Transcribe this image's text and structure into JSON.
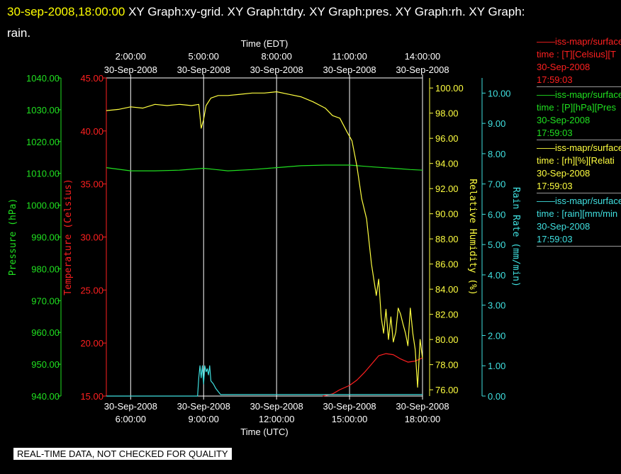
{
  "header": {
    "timestamp": "30-sep-2008,18:00:00",
    "graphs": "XY Graph:xy-grid.  XY Graph:tdry.  XY Graph:pres.  XY Graph:rh.  XY Graph:",
    "last_line": "rain."
  },
  "legend": [
    {
      "color": "#ff2020",
      "line1": "——iss-mapr/surface",
      "line2": "time : [T][Celsius][T",
      "line3": "30-Sep-2008",
      "line4": "17:59:03"
    },
    {
      "color": "#20e020",
      "line1": "——iss-mapr/surface",
      "line2": "time : [P][hPa][Pres",
      "line3": "30-Sep-2008",
      "line4": "17:59:03"
    },
    {
      "color": "#ffff40",
      "line1": "——iss-mapr/surface",
      "line2": "time : [rh][%][Relati",
      "line3": "30-Sep-2008",
      "line4": "17:59:03"
    },
    {
      "color": "#40e0e0",
      "line1": "——iss-mapr/surface",
      "line2": "time : [rain][mm/min",
      "line3": "30-Sep-2008",
      "line4": "17:59:03"
    }
  ],
  "footer": "REAL-TIME DATA, NOT CHECKED FOR QUALITY",
  "chart_data": {
    "type": "line",
    "x_range_utc_hours": [
      5,
      18
    ],
    "grid": true,
    "top_axis": {
      "title": "Time (EDT)",
      "ticks": [
        {
          "hour_utc": 6,
          "time": "2:00:00",
          "date": "30-Sep-2008"
        },
        {
          "hour_utc": 9,
          "time": "5:00:00",
          "date": "30-Sep-2008"
        },
        {
          "hour_utc": 12,
          "time": "8:00:00",
          "date": "30-Sep-2008"
        },
        {
          "hour_utc": 15,
          "time": "11:00:00",
          "date": "30-Sep-2008"
        },
        {
          "hour_utc": 18,
          "time": "14:00:00",
          "date": "30-Sep-2008"
        }
      ]
    },
    "bottom_axis": {
      "title": "Time (UTC)",
      "ticks": [
        {
          "hour_utc": 6,
          "date": "30-Sep-2008",
          "time": "6:00:00"
        },
        {
          "hour_utc": 9,
          "date": "30-Sep-2008",
          "time": "9:00:00"
        },
        {
          "hour_utc": 12,
          "date": "30-Sep-2008",
          "time": "12:00:00"
        },
        {
          "hour_utc": 15,
          "date": "30-Sep-2008",
          "time": "15:00:00"
        },
        {
          "hour_utc": 18,
          "date": "30-Sep-2008",
          "time": "18:00:00"
        }
      ]
    },
    "axes": {
      "pressure": {
        "label": "Pressure (hPa)",
        "color": "#20e020",
        "range": [
          940,
          1040
        ],
        "ticks": [
          "1040.00",
          "1030.00",
          "1020.00",
          "1010.00",
          "1000.00",
          "990.00",
          "980.00",
          "970.00",
          "960.00",
          "950.00",
          "940.00"
        ]
      },
      "temperature": {
        "label": "Temperature (Celsius)",
        "color": "#ff2020",
        "range": [
          15,
          45
        ],
        "ticks": [
          "45.00",
          "40.00",
          "35.00",
          "30.00",
          "25.00",
          "20.00",
          "15.00"
        ]
      },
      "rh": {
        "label": "Relative Humidity (%)",
        "color": "#ffff40",
        "range": [
          75.5,
          100.8
        ],
        "ticks": [
          "100.00",
          "98.00",
          "96.00",
          "94.00",
          "92.00",
          "90.00",
          "88.00",
          "86.00",
          "84.00",
          "82.00",
          "80.00",
          "78.00",
          "76.00"
        ]
      },
      "rain": {
        "label": "Rain Rate (mm/min)",
        "color": "#40e0e0",
        "range": [
          0,
          10.5
        ],
        "ticks": [
          "10.00",
          "9.00",
          "8.00",
          "7.00",
          "6.00",
          "5.00",
          "4.00",
          "3.00",
          "2.00",
          "1.00",
          "0.00"
        ]
      }
    },
    "series": [
      {
        "name": "iss-mapr/surface T",
        "axis": "temperature",
        "color": "#ff2020",
        "x": [
          13.9,
          14.3,
          14.6,
          15.0,
          15.3,
          15.6,
          15.9,
          16.2,
          16.5,
          16.8,
          17.1,
          17.4,
          17.7,
          18.0
        ],
        "y": [
          15.0,
          15.2,
          15.6,
          16.0,
          16.5,
          17.2,
          18.0,
          18.8,
          19.0,
          18.9,
          18.5,
          18.2,
          18.3,
          18.6
        ]
      },
      {
        "name": "iss-mapr/surface P",
        "axis": "pressure",
        "color": "#20e020",
        "x": [
          5.0,
          5.5,
          6.0,
          7.0,
          8.0,
          9.0,
          9.5,
          10.0,
          11.0,
          12.0,
          13.0,
          14.0,
          15.0,
          16.0,
          17.0,
          17.5,
          18.0
        ],
        "y": [
          1011.8,
          1011.3,
          1010.8,
          1010.8,
          1011.0,
          1011.6,
          1011.2,
          1010.8,
          1011.2,
          1011.8,
          1012.4,
          1012.6,
          1012.6,
          1012.0,
          1011.5,
          1011.2,
          1011.0
        ]
      },
      {
        "name": "iss-mapr/surface rh",
        "axis": "rh",
        "color": "#ffff40",
        "x": [
          5.0,
          5.5,
          6.0,
          6.5,
          7.0,
          7.5,
          8.0,
          8.5,
          8.8,
          8.9,
          9.0,
          9.1,
          9.3,
          9.6,
          10.0,
          10.5,
          11.0,
          11.5,
          12.0,
          12.5,
          13.0,
          13.5,
          14.0,
          14.3,
          14.6,
          14.9,
          15.1,
          15.3,
          15.5,
          15.7,
          15.9,
          16.1,
          16.2,
          16.3,
          16.4,
          16.5,
          16.6,
          16.7,
          16.8,
          16.9,
          17.0,
          17.1,
          17.2,
          17.3,
          17.4,
          17.5,
          17.6,
          17.7,
          17.8,
          17.9,
          18.0
        ],
        "y": [
          98.2,
          98.3,
          98.5,
          98.4,
          98.7,
          98.6,
          98.7,
          98.6,
          98.7,
          96.8,
          97.5,
          98.6,
          99.2,
          99.4,
          99.4,
          99.5,
          99.6,
          99.6,
          99.7,
          99.5,
          99.3,
          98.9,
          98.4,
          97.8,
          97.6,
          96.5,
          95.8,
          93.8,
          91.2,
          89.6,
          86.0,
          83.5,
          84.8,
          81.8,
          80.5,
          82.4,
          80.0,
          81.8,
          79.8,
          80.6,
          82.5,
          82.0,
          81.2,
          80.5,
          79.5,
          82.5,
          80.5,
          79.2,
          76.2,
          80.0,
          78.5
        ]
      },
      {
        "name": "iss-mapr/surface rain",
        "axis": "rain",
        "color": "#40e0e0",
        "x": [
          5.0,
          6.0,
          7.0,
          8.0,
          8.75,
          8.8,
          8.85,
          8.9,
          8.95,
          9.0,
          9.05,
          9.1,
          9.15,
          9.2,
          9.25,
          9.3,
          9.4,
          9.5,
          9.6,
          9.7,
          10.0,
          12.0,
          15.0,
          18.0
        ],
        "y": [
          0.0,
          0.0,
          0.0,
          0.0,
          0.0,
          0.6,
          1.0,
          0.6,
          1.0,
          0.4,
          1.0,
          0.8,
          0.9,
          0.7,
          1.0,
          0.5,
          0.4,
          0.25,
          0.15,
          0.05,
          0.05,
          0.05,
          0.05,
          0.05
        ]
      }
    ]
  }
}
